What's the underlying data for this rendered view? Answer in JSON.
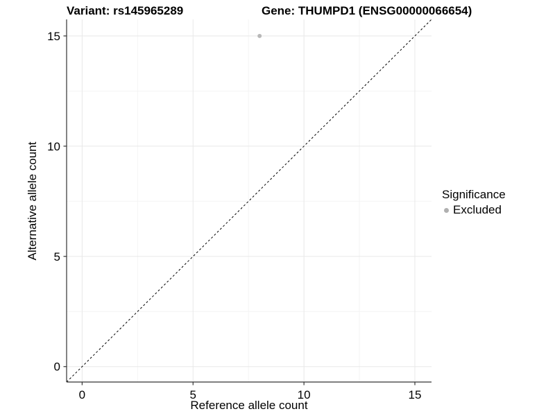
{
  "chart_data": {
    "type": "scatter",
    "titles": {
      "left": "Variant: rs145965289",
      "right": "Gene: THUMPD1 (ENSG00000066654)"
    },
    "xlabel": "Reference allele count",
    "ylabel": "Alternative allele count",
    "xlim": [
      -0.7,
      15.75
    ],
    "ylim": [
      -0.7,
      15.75
    ],
    "x_ticks": [
      0,
      5,
      10,
      15
    ],
    "y_ticks": [
      0,
      5,
      10,
      15
    ],
    "x_minor_breaks": [
      2.5,
      7.5,
      12.5
    ],
    "y_minor_breaks": [
      2.5,
      7.5,
      12.5
    ],
    "grid": true,
    "points": [
      {
        "x": 8,
        "y": 15,
        "significance": "Excluded"
      }
    ],
    "reference_line": {
      "slope": 1,
      "intercept": 0,
      "linetype": "dashed",
      "color": "#000000"
    },
    "legend": {
      "title": "Significance",
      "position": "right",
      "entries": [
        {
          "label": "Excluded",
          "color": "#b0b0b0"
        }
      ]
    },
    "colors": {
      "point": "#b8b8b8",
      "grid_major": "#e8e8e8",
      "grid_minor": "#f4f4f4",
      "axis": "#333333",
      "text": "#000000",
      "background": "#ffffff"
    }
  }
}
